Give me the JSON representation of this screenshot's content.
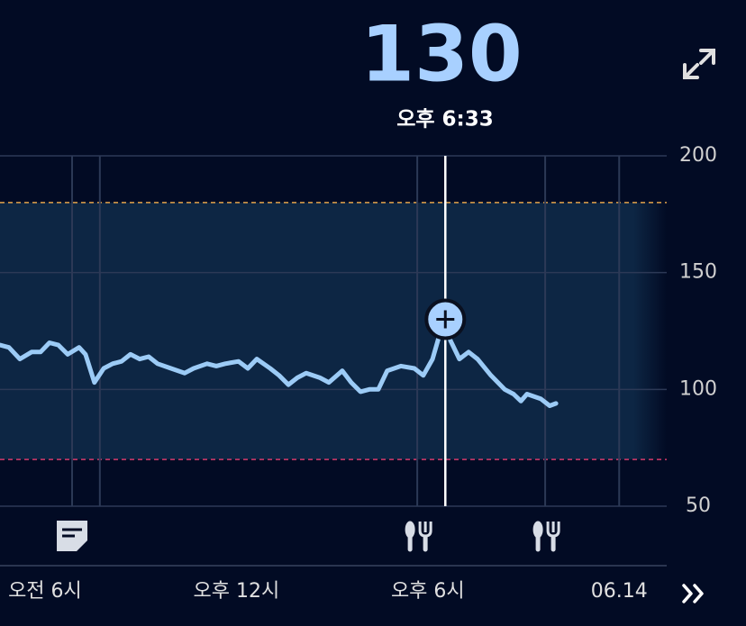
{
  "chart_data": {
    "type": "line",
    "current_value": 130,
    "current_time": "오후 6:33",
    "cursor": 18.55,
    "x": [
      4.59,
      4.87,
      5.21,
      5.58,
      5.86,
      6.14,
      6.42,
      6.71,
      7.07,
      7.27,
      7.55,
      7.84,
      8.12,
      8.4,
      8.68,
      8.97,
      9.25,
      9.53,
      9.95,
      10.38,
      10.66,
      11.08,
      11.37,
      11.65,
      12.07,
      12.36,
      12.64,
      13.06,
      13.34,
      13.63,
      13.91,
      14.19,
      14.62,
      14.9,
      15.32,
      15.6,
      15.89,
      16.17,
      16.45,
      16.73,
      17.16,
      17.58,
      17.86,
      18.15,
      18.34,
      18.55,
      18.71,
      18.99,
      19.28,
      19.56,
      19.98,
      20.41,
      20.69,
      20.92,
      21.11,
      21.54,
      21.82,
      22.02
    ],
    "series": [
      {
        "color": "#9ccbf6",
        "values": [
          119,
          118,
          113,
          116,
          116,
          120,
          119,
          115,
          118,
          115,
          103,
          109,
          111,
          112,
          115,
          113,
          114,
          111,
          109,
          107,
          109,
          111,
          110,
          111,
          112,
          109,
          113,
          109,
          106,
          102,
          105,
          107,
          105,
          103,
          108,
          103,
          99,
          100,
          100,
          108,
          110,
          109,
          106,
          113,
          122,
          130,
          121,
          113,
          116,
          113,
          106,
          100,
          98,
          95,
          98,
          96,
          93,
          94
        ]
      }
    ],
    "xlim": [
      4.59,
      25.49
    ],
    "xticks": [
      {
        "value": 6,
        "label": "오전 6시"
      },
      {
        "value": 12,
        "label": "오후 12시"
      },
      {
        "value": 18,
        "label": "오후 6시"
      },
      {
        "value": 24,
        "label": "06.14"
      }
    ],
    "ylim": [
      50,
      200
    ],
    "yticks": [
      200,
      150,
      100,
      50
    ],
    "grid": true,
    "target_range": [
      70,
      180
    ],
    "events": [
      {
        "x": 6.85,
        "icon": "note"
      },
      {
        "x": 7.72
      },
      {
        "x": 17.67,
        "icon": "meal"
      },
      {
        "x": 21.68,
        "icon": "meal"
      },
      {
        "x": 24
      }
    ]
  }
}
